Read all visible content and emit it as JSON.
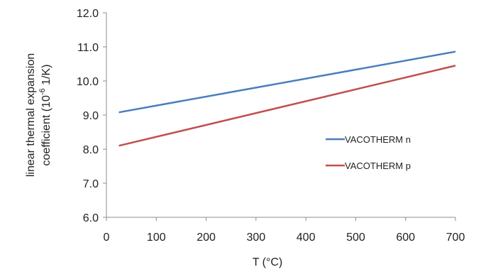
{
  "chart_data": {
    "type": "line",
    "xlabel": "T (°C)",
    "ylabel_line1": "linear thermal expansion",
    "ylabel_line2_pre": "coefficient (10",
    "ylabel_line2_sup": "-6",
    "ylabel_line2_post": " 1/K)",
    "xlim": [
      0,
      700
    ],
    "ylim": [
      6.0,
      12.0
    ],
    "x_ticks": [
      "0",
      "100",
      "200",
      "300",
      "400",
      "500",
      "600",
      "700"
    ],
    "y_ticks": [
      "6.0",
      "7.0",
      "8.0",
      "9.0",
      "10.0",
      "11.0",
      "12.0"
    ],
    "grid": false,
    "legend_position": "right",
    "series": [
      {
        "name": "VACOTHERM n",
        "color": "#4a7ebb",
        "x": [
          25,
          700
        ],
        "y": [
          9.08,
          10.86
        ]
      },
      {
        "name": "VACOTHERM p",
        "color": "#c0504d",
        "x": [
          25,
          700
        ],
        "y": [
          8.1,
          10.45
        ]
      }
    ]
  }
}
